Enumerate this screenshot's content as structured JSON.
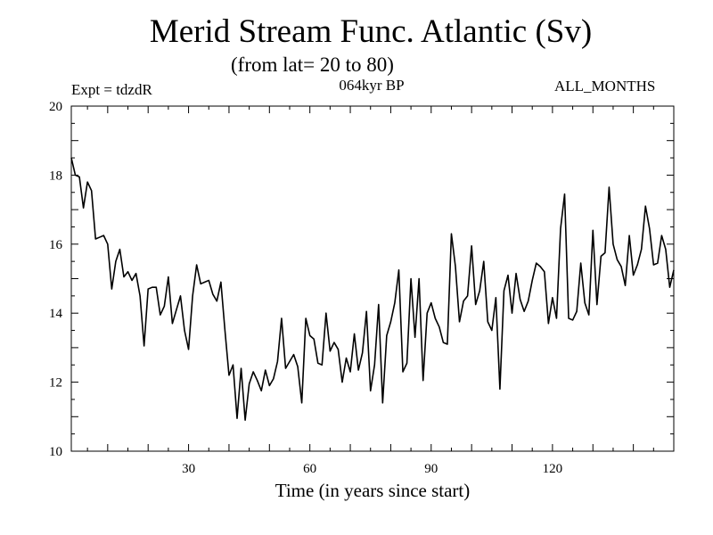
{
  "chart_data": {
    "type": "line",
    "title": "Merid Stream Func. Atlantic (Sv)",
    "subtitle": "(from lat= 20 to 80)",
    "experiment_label": "Expt = tdzdR",
    "period_label": "064kyr BP",
    "months_label": "ALL_MONTHS",
    "xlabel": "Time (in years since start)",
    "ylabel": "",
    "xlim": [
      1,
      150
    ],
    "ylim": [
      10,
      20
    ],
    "xticks": [
      30,
      60,
      90,
      120
    ],
    "yticks": [
      10,
      12,
      14,
      16,
      18,
      20
    ],
    "grid": false,
    "series": [
      {
        "name": "Merid Stream Func. Atlantic",
        "x": [
          1,
          2,
          3,
          4,
          5,
          6,
          7,
          8,
          9,
          10,
          11,
          12,
          13,
          14,
          15,
          16,
          17,
          18,
          19,
          20,
          21,
          22,
          23,
          24,
          25,
          26,
          27,
          28,
          29,
          30,
          31,
          32,
          33,
          34,
          35,
          36,
          37,
          38,
          39,
          40,
          41,
          42,
          43,
          44,
          45,
          46,
          47,
          48,
          49,
          50,
          51,
          52,
          53,
          54,
          55,
          56,
          57,
          58,
          59,
          60,
          61,
          62,
          63,
          64,
          65,
          66,
          67,
          68,
          69,
          70,
          71,
          72,
          73,
          74,
          75,
          76,
          77,
          78,
          79,
          80,
          81,
          82,
          83,
          84,
          85,
          86,
          87,
          88,
          89,
          90,
          91,
          92,
          93,
          94,
          95,
          96,
          97,
          98,
          99,
          100,
          101,
          102,
          103,
          104,
          105,
          106,
          107,
          108,
          109,
          110,
          111,
          112,
          113,
          114,
          115,
          116,
          117,
          118,
          119,
          120,
          121,
          122,
          123,
          124,
          125,
          126,
          127,
          128,
          129,
          130,
          131,
          132,
          133,
          134,
          135,
          136,
          137,
          138,
          139,
          140,
          141,
          142,
          143,
          144,
          145,
          146,
          147,
          148,
          149,
          150
        ],
        "values": [
          18.5,
          18.0,
          17.95,
          17.05,
          17.8,
          17.55,
          16.15,
          16.2,
          16.25,
          16.0,
          14.7,
          15.5,
          15.85,
          15.05,
          15.2,
          14.95,
          15.15,
          14.5,
          13.05,
          14.7,
          14.75,
          14.75,
          13.95,
          14.2,
          15.05,
          13.7,
          14.1,
          14.5,
          13.5,
          12.95,
          14.5,
          15.4,
          14.85,
          14.9,
          14.95,
          14.55,
          14.35,
          14.9,
          13.5,
          12.2,
          12.5,
          10.95,
          12.4,
          10.9,
          11.95,
          12.3,
          12.05,
          11.75,
          12.35,
          11.9,
          12.1,
          12.6,
          13.85,
          12.4,
          12.6,
          12.8,
          12.45,
          11.4,
          13.85,
          13.35,
          13.25,
          12.55,
          12.5,
          14.0,
          12.9,
          13.15,
          12.95,
          12.0,
          12.7,
          12.3,
          13.4,
          12.35,
          12.85,
          14.05,
          11.75,
          12.5,
          14.25,
          11.4,
          13.35,
          13.75,
          14.3,
          15.25,
          12.3,
          12.55,
          15.0,
          13.3,
          15.0,
          12.05,
          14.0,
          14.3,
          13.85,
          13.6,
          13.15,
          13.1,
          16.3,
          15.35,
          13.75,
          14.35,
          14.5,
          15.95,
          14.25,
          14.65,
          15.5,
          13.75,
          13.5,
          14.45,
          11.8,
          14.65,
          15.1,
          14.0,
          15.15,
          14.4,
          14.05,
          14.35,
          14.95,
          15.45,
          15.35,
          15.2,
          13.7,
          14.45,
          13.85,
          16.45,
          17.45,
          13.85,
          13.8,
          14.05,
          15.45,
          14.3,
          13.95,
          16.4,
          14.25,
          15.65,
          15.75,
          17.65,
          16.0,
          15.55,
          15.35,
          14.8,
          16.25,
          15.1,
          15.4,
          15.85,
          17.1,
          16.45,
          15.4,
          15.45,
          16.25,
          15.85,
          14.75,
          15.25
        ]
      }
    ]
  }
}
